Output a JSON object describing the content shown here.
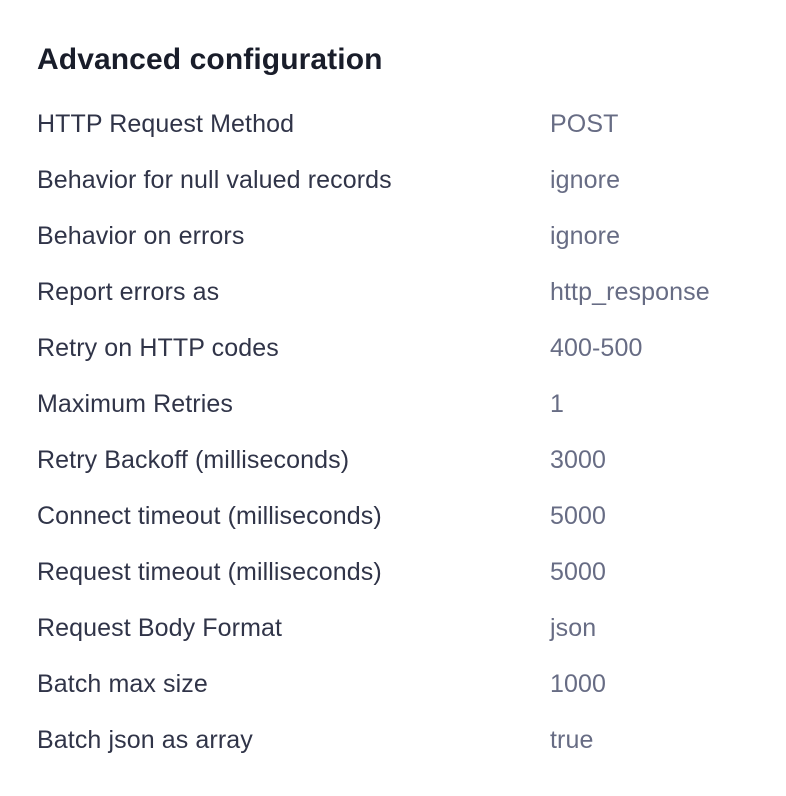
{
  "page": {
    "title": "Advanced configuration"
  },
  "config": {
    "rows": [
      {
        "label": "HTTP Request Method",
        "value": "POST"
      },
      {
        "label": "Behavior for null valued records",
        "value": "ignore"
      },
      {
        "label": "Behavior on errors",
        "value": "ignore"
      },
      {
        "label": "Report errors as",
        "value": "http_response"
      },
      {
        "label": "Retry on HTTP codes",
        "value": "400-500"
      },
      {
        "label": "Maximum Retries",
        "value": "1"
      },
      {
        "label": "Retry Backoff (milliseconds)",
        "value": "3000"
      },
      {
        "label": "Connect timeout (milliseconds)",
        "value": "5000"
      },
      {
        "label": "Request timeout (milliseconds)",
        "value": "5000"
      },
      {
        "label": "Request Body Format",
        "value": "json"
      },
      {
        "label": "Batch max size",
        "value": "1000"
      },
      {
        "label": "Batch json as array",
        "value": "true"
      }
    ]
  },
  "colors": {
    "background": "#ffffff",
    "title": "#191d2a",
    "label": "#303448",
    "value": "#676c84"
  }
}
